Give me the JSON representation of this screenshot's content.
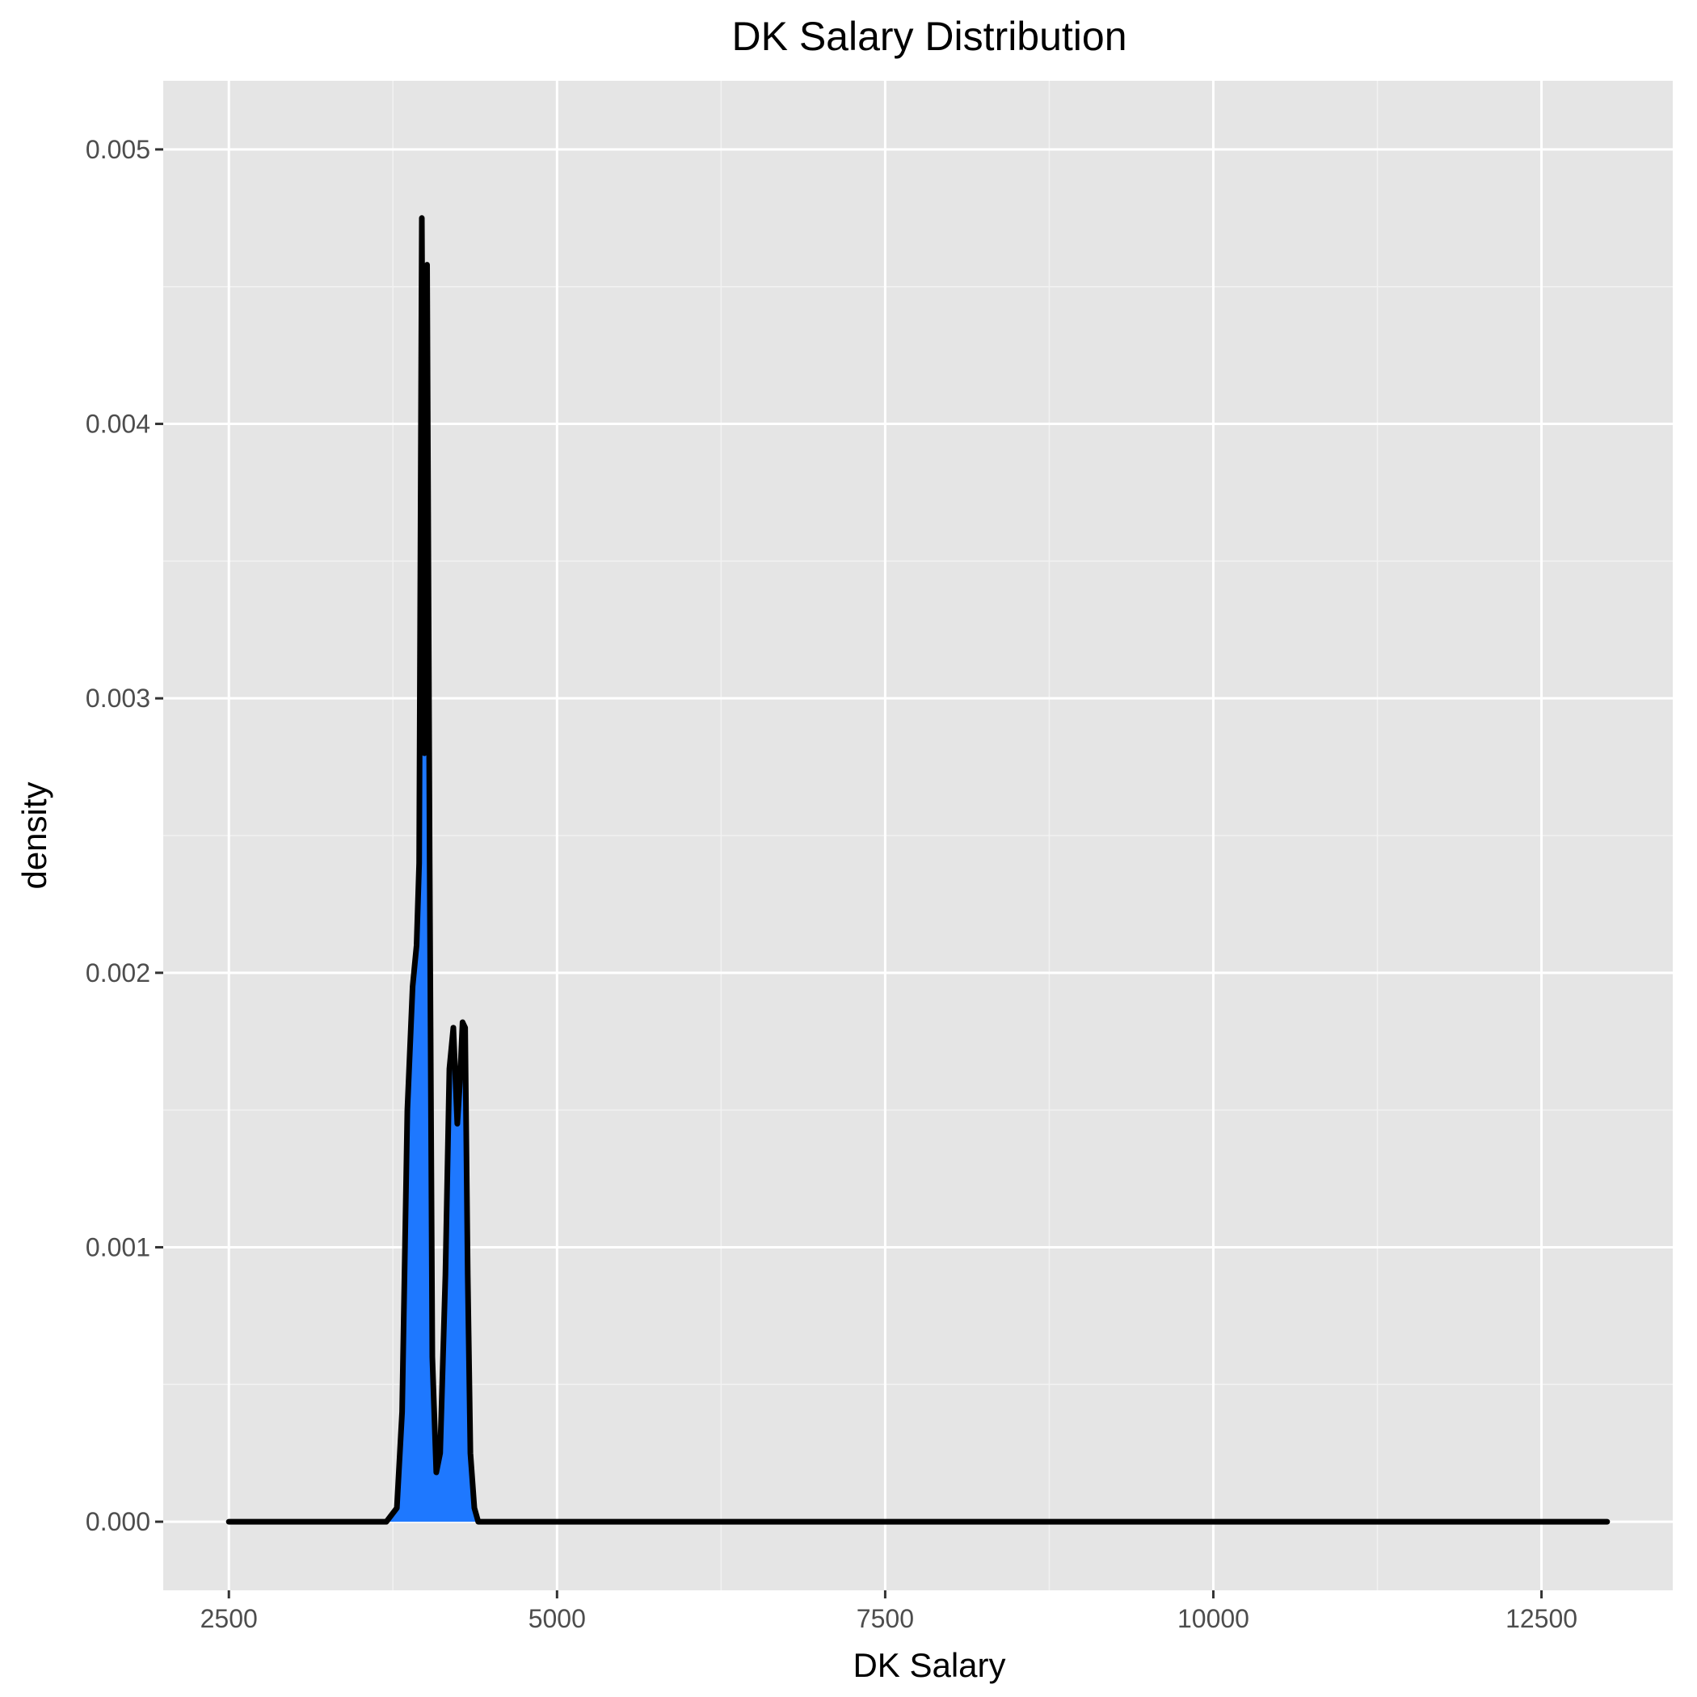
{
  "chart_data": {
    "type": "area",
    "title": "DK Salary Distribution",
    "xlabel": "DK Salary",
    "ylabel": "density",
    "xlim": [
      2000,
      13500
    ],
    "ylim": [
      -0.00025,
      0.00525
    ],
    "x_ticks": [
      2500,
      5000,
      7500,
      10000,
      12500
    ],
    "x_tick_labels": [
      "2500",
      "5000",
      "7500",
      "10000",
      "12500"
    ],
    "y_ticks": [
      0,
      0.001,
      0.002,
      0.003,
      0.004,
      0.005
    ],
    "y_tick_labels": [
      "0.000",
      "0.001",
      "0.002",
      "0.003",
      "0.004",
      "0.005"
    ],
    "grid": true,
    "legend": "none",
    "panel_background": "#e5e5e5",
    "fill_color": "#1e78ff",
    "line_color": "#000000",
    "series": [
      {
        "x": [
          2500,
          3700,
          3780,
          3820,
          3860,
          3900,
          3930,
          3950,
          3970,
          3990,
          4010,
          4030,
          4050,
          4080,
          4110,
          4150,
          4180,
          4210,
          4240,
          4260,
          4280,
          4300,
          4320,
          4340,
          4370,
          4400,
          4430,
          4470,
          13000
        ],
        "y": [
          0,
          0,
          5e-05,
          0.0004,
          0.0015,
          0.00195,
          0.0021,
          0.0024,
          0.00475,
          0.0028,
          0.00458,
          0.0024,
          0.0006,
          0.00018,
          0.00025,
          0.0009,
          0.00165,
          0.0018,
          0.00145,
          0.0016,
          0.00182,
          0.0018,
          0.0009,
          0.00025,
          5e-05,
          0,
          0,
          0,
          0
        ]
      }
    ]
  }
}
